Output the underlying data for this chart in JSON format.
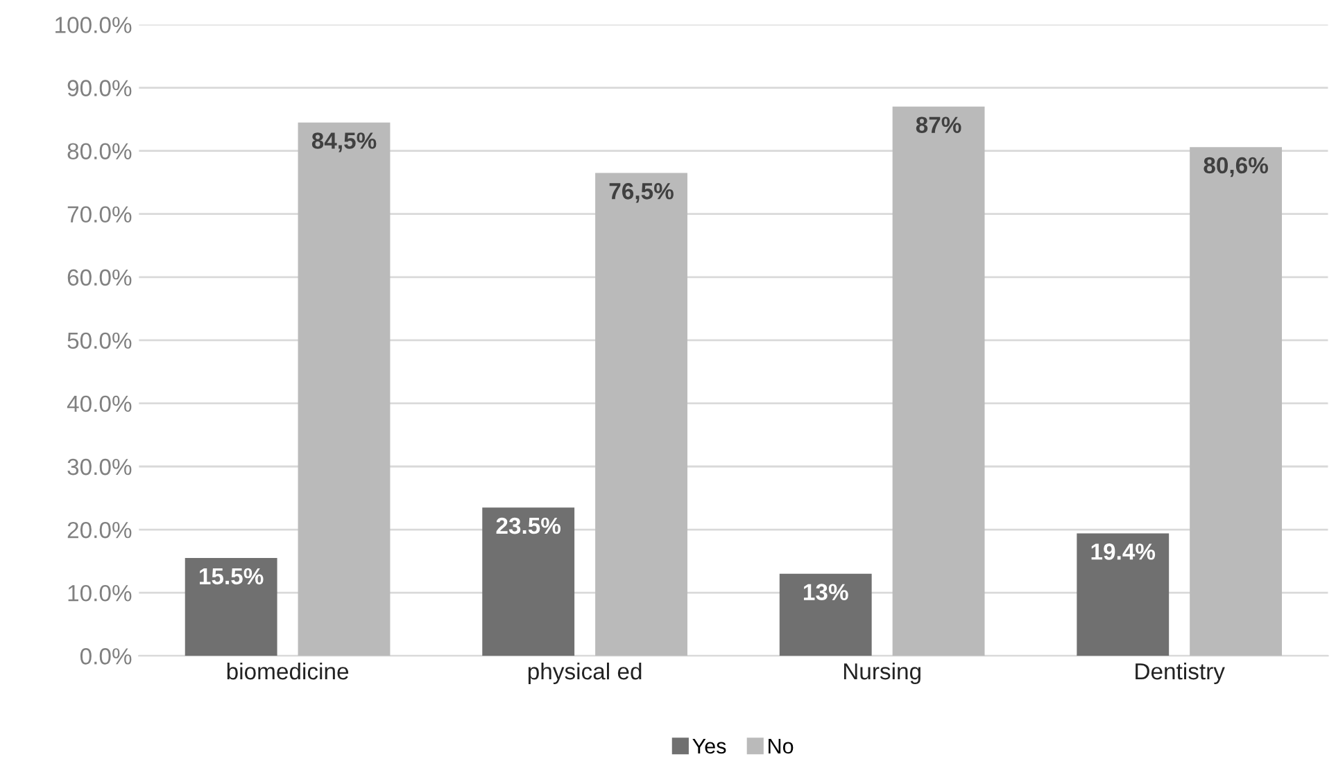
{
  "chart_data": {
    "type": "bar",
    "categories": [
      "biomedicine",
      "physical ed",
      "Nursing",
      "Dentistry"
    ],
    "series": [
      {
        "name": "Yes",
        "color": "#707070",
        "values": [
          15.5,
          23.5,
          13,
          19.4
        ],
        "value_labels": [
          "15.5%",
          "23.5%",
          "13%",
          "19.4%"
        ]
      },
      {
        "name": "No",
        "color": "#bababa",
        "values": [
          84.5,
          76.5,
          87,
          80.6
        ],
        "value_labels": [
          "84,5%",
          "76,5%",
          "87%",
          "80,6%"
        ]
      }
    ],
    "ylim": [
      0,
      100
    ],
    "yticks": [
      {
        "value": 0,
        "label": "0.0%"
      },
      {
        "value": 10,
        "label": "10.0%"
      },
      {
        "value": 20,
        "label": "20.0%"
      },
      {
        "value": 30,
        "label": "30.0%"
      },
      {
        "value": 40,
        "label": "40.0%"
      },
      {
        "value": 50,
        "label": "50.0%"
      },
      {
        "value": 60,
        "label": "60.0%"
      },
      {
        "value": 70,
        "label": "70.0%"
      },
      {
        "value": 80,
        "label": "80.0%"
      },
      {
        "value": 90,
        "label": "90.0%"
      },
      {
        "value": 100,
        "label": "100.0%"
      }
    ],
    "grid": "y",
    "legend": "bottom"
  }
}
